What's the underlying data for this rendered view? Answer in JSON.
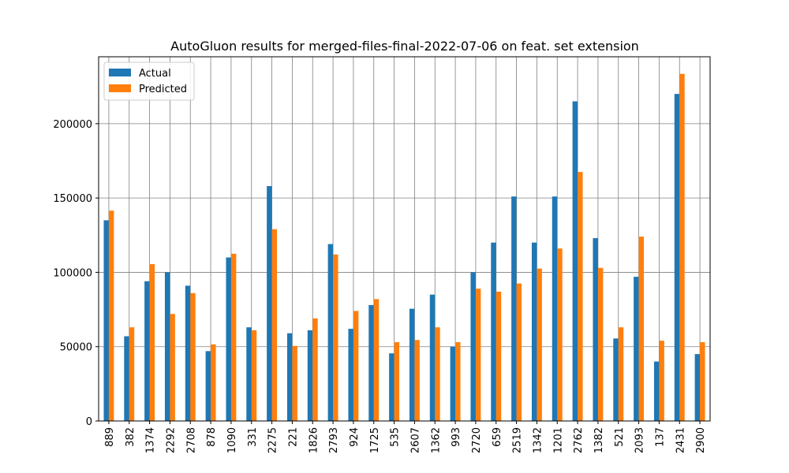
{
  "chart_data": {
    "type": "bar",
    "title": "AutoGluon results for merged-files-final-2022-07-06 on feat. set extension",
    "xlabel": "",
    "ylabel": "",
    "ylim": [
      0,
      245000
    ],
    "yticks": [
      0,
      50000,
      100000,
      150000,
      200000
    ],
    "grid": true,
    "legend_position": "top-left",
    "categories": [
      "889",
      "382",
      "1374",
      "2292",
      "2708",
      "878",
      "1090",
      "331",
      "2275",
      "221",
      "1826",
      "2793",
      "924",
      "1725",
      "535",
      "2607",
      "1362",
      "993",
      "2720",
      "659",
      "2519",
      "1342",
      "1201",
      "2762",
      "1382",
      "521",
      "2093",
      "137",
      "2431",
      "2900"
    ],
    "series": [
      {
        "name": "Actual",
        "color": "#1f77b4",
        "values": [
          135000,
          57000,
          94000,
          100000,
          91000,
          47000,
          110000,
          63000,
          158000,
          59000,
          61000,
          119000,
          62000,
          78000,
          45500,
          75500,
          85000,
          50000,
          100000,
          120000,
          151000,
          120000,
          151000,
          215000,
          123000,
          55500,
          97000,
          40000,
          220000,
          45000
        ]
      },
      {
        "name": "Predicted",
        "color": "#ff7f0e",
        "values": [
          141500,
          63000,
          105500,
          72000,
          86000,
          51500,
          112500,
          61000,
          129000,
          50500,
          69000,
          112000,
          74000,
          82000,
          53000,
          54500,
          63000,
          53000,
          89000,
          87000,
          92500,
          102500,
          116000,
          167500,
          103000,
          63000,
          124000,
          54000,
          233500,
          53000
        ]
      }
    ]
  }
}
